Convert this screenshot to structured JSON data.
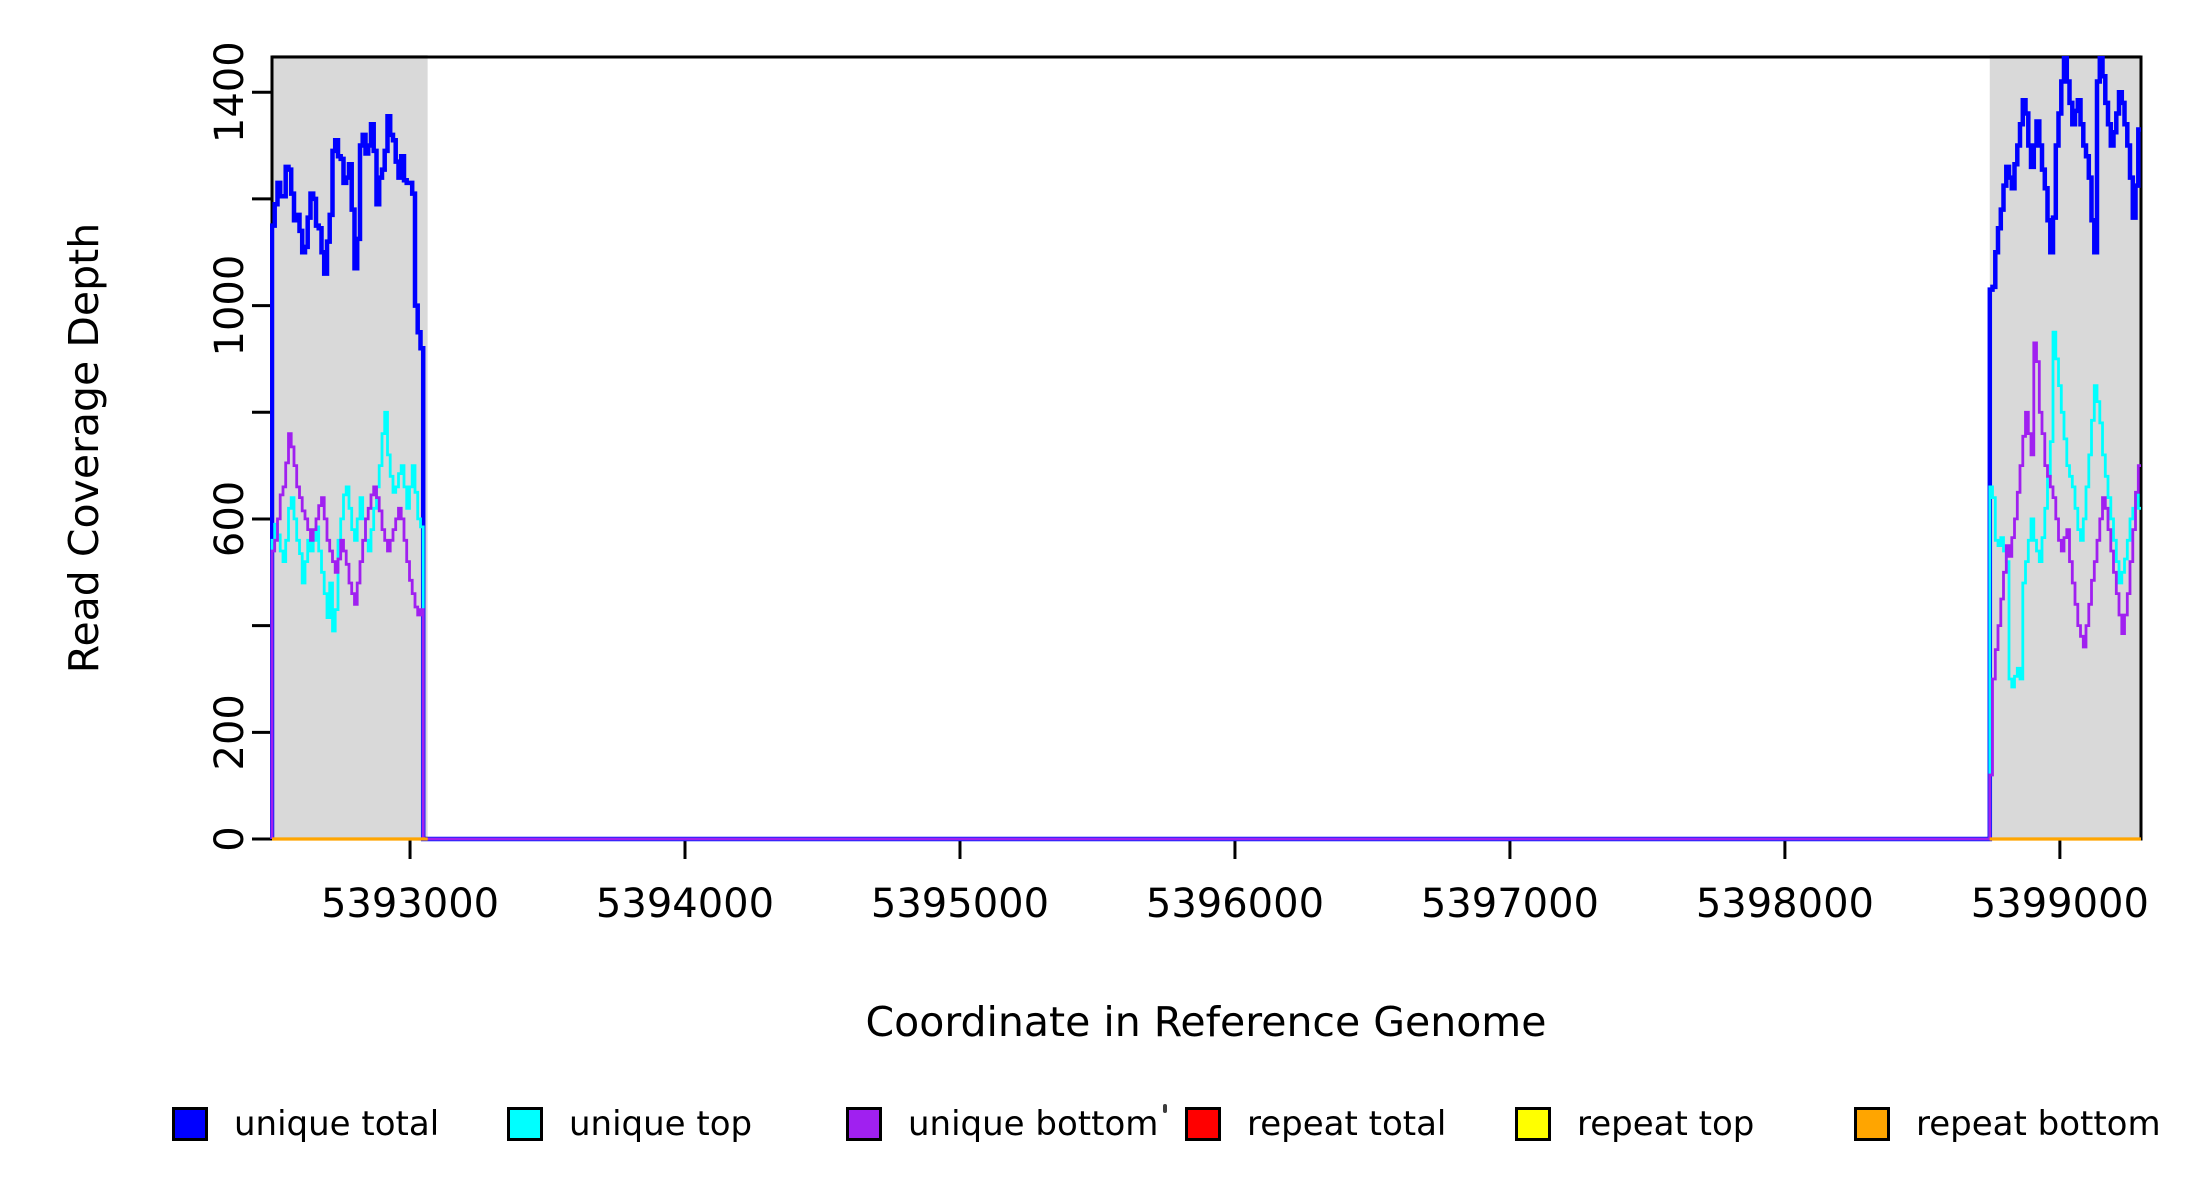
{
  "chart_data": {
    "type": "line",
    "subtype": "step",
    "title": "",
    "xlabel": "Coordinate in Reference Genome",
    "ylabel": "Read Coverage Depth",
    "xlim": [
      5392498,
      5399295
    ],
    "ylim": [
      0,
      1466
    ],
    "grid": false,
    "legend_position": "bottom",
    "axis_color": "#000000",
    "x_ticks": [
      {
        "v": 5393000,
        "label": "5393000"
      },
      {
        "v": 5394000,
        "label": "5394000"
      },
      {
        "v": 5395000,
        "label": "5395000"
      },
      {
        "v": 5396000,
        "label": "5396000"
      },
      {
        "v": 5397000,
        "label": "5397000"
      },
      {
        "v": 5398000,
        "label": "5398000"
      },
      {
        "v": 5399000,
        "label": "5399000"
      }
    ],
    "y_ticks": [
      {
        "v": 0,
        "label": "0"
      },
      {
        "v": 200,
        "label": "200"
      },
      {
        "v": 400,
        "label": ""
      },
      {
        "v": 600,
        "label": "600"
      },
      {
        "v": 800,
        "label": ""
      },
      {
        "v": 1000,
        "label": "1000"
      },
      {
        "v": 1200,
        "label": ""
      },
      {
        "v": 1400,
        "label": "1400"
      }
    ],
    "shaded_regions": [
      {
        "x0": 5392498,
        "x1": 5393064,
        "color": "#D9D9D9"
      },
      {
        "x0": 5398745,
        "x1": 5399295,
        "color": "#D9D9D9"
      }
    ],
    "series": [
      {
        "name": "unique total",
        "color": "#0000FF",
        "line_width": 4.5,
        "connect_baseline": true,
        "segments": [
          {
            "x0": 5392498,
            "dx": 10,
            "values": [
              1150,
              1190,
              1230,
              1205,
              1205,
              1260,
              1255,
              1210,
              1160,
              1170,
              1140,
              1100,
              1110,
              1165,
              1210,
              1200,
              1150,
              1145,
              1100,
              1060,
              1120,
              1170,
              1290,
              1310,
              1280,
              1275,
              1230,
              1240,
              1265,
              1180,
              1070,
              1125,
              1300,
              1320,
              1285,
              1300,
              1340,
              1290,
              1190,
              1240,
              1255,
              1290,
              1355,
              1320,
              1310,
              1270,
              1240,
              1280,
              1235,
              1230,
              1230,
              1210,
              1000,
              950,
              920
            ]
          },
          {
            "x0": 5398745,
            "dx": 10,
            "values": [
              1030,
              1035,
              1100,
              1145,
              1180,
              1225,
              1260,
              1240,
              1220,
              1265,
              1300,
              1340,
              1385,
              1360,
              1300,
              1260,
              1300,
              1345,
              1300,
              1255,
              1220,
              1160,
              1100,
              1165,
              1300,
              1360,
              1420,
              1465,
              1420,
              1380,
              1340,
              1365,
              1385,
              1340,
              1300,
              1280,
              1240,
              1160,
              1100,
              1420,
              1465,
              1430,
              1380,
              1340,
              1300,
              1325,
              1360,
              1400,
              1380,
              1340,
              1300,
              1240,
              1165,
              1225,
              1330
            ]
          }
        ]
      },
      {
        "name": "unique top",
        "color": "#00FFFF",
        "line_width": 2.8,
        "connect_baseline": true,
        "segments": [
          {
            "x0": 5392498,
            "dx": 10,
            "values": [
              560,
              590,
              570,
              540,
              520,
              560,
              620,
              640,
              600,
              560,
              535,
              480,
              520,
              560,
              540,
              560,
              585,
              540,
              500,
              460,
              415,
              480,
              390,
              430,
              560,
              600,
              645,
              660,
              620,
              580,
              560,
              600,
              640,
              600,
              560,
              540,
              580,
              620,
              660,
              700,
              760,
              800,
              720,
              680,
              650,
              660,
              685,
              700,
              660,
              620,
              660,
              700,
              650,
              600,
              585
            ]
          },
          {
            "x0": 5398745,
            "dx": 10,
            "values": [
              660,
              640,
              560,
              550,
              565,
              540,
              520,
              300,
              285,
              305,
              320,
              300,
              480,
              520,
              560,
              600,
              560,
              540,
              520,
              565,
              620,
              680,
              745,
              950,
              900,
              850,
              800,
              750,
              700,
              680,
              660,
              620,
              580,
              560,
              600,
              660,
              720,
              785,
              850,
              820,
              780,
              720,
              680,
              640,
              600,
              560,
              520,
              480,
              500,
              525,
              560,
              600,
              620,
              645,
              620
            ]
          }
        ]
      },
      {
        "name": "unique bottom",
        "color": "#A020F0",
        "line_width": 2.8,
        "connect_baseline": true,
        "segments": [
          {
            "x0": 5392498,
            "dx": 10,
            "values": [
              540,
              560,
              600,
              645,
              660,
              705,
              760,
              735,
              700,
              660,
              640,
              615,
              600,
              580,
              560,
              580,
              600,
              625,
              640,
              600,
              560,
              540,
              520,
              500,
              525,
              560,
              540,
              515,
              480,
              460,
              440,
              480,
              520,
              560,
              600,
              620,
              645,
              660,
              640,
              615,
              580,
              560,
              540,
              560,
              580,
              600,
              620,
              600,
              560,
              520,
              485,
              460,
              435,
              420,
              430
            ]
          },
          {
            "x0": 5398745,
            "dx": 10,
            "values": [
              120,
              300,
              355,
              400,
              450,
              500,
              550,
              530,
              565,
              600,
              650,
              700,
              755,
              800,
              760,
              720,
              930,
              895,
              800,
              760,
              700,
              680,
              660,
              640,
              600,
              560,
              540,
              565,
              580,
              520,
              480,
              440,
              400,
              380,
              360,
              400,
              440,
              485,
              520,
              560,
              600,
              640,
              620,
              580,
              540,
              500,
              460,
              420,
              385,
              420,
              460,
              520,
              580,
              650,
              700
            ]
          }
        ]
      },
      {
        "name": "repeat total",
        "color": "#FF0000",
        "line_width": 2.8,
        "connect_baseline": false,
        "segments": [
          {
            "x0": 5392498,
            "x1": 5393064,
            "flat": 0
          },
          {
            "x0": 5398745,
            "x1": 5399295,
            "flat": 0
          }
        ]
      },
      {
        "name": "repeat top",
        "color": "#FFFF00",
        "line_width": 2.8,
        "connect_baseline": false,
        "segments": [
          {
            "x0": 5392498,
            "x1": 5393064,
            "flat": 0
          },
          {
            "x0": 5398745,
            "x1": 5399295,
            "flat": 0
          }
        ]
      },
      {
        "name": "repeat bottom",
        "color": "#FFA500",
        "line_width": 3.2,
        "connect_baseline": false,
        "segments": [
          {
            "x0": 5392498,
            "x1": 5393064,
            "flat": 0
          },
          {
            "x0": 5398745,
            "x1": 5399295,
            "flat": 0
          }
        ]
      }
    ]
  }
}
